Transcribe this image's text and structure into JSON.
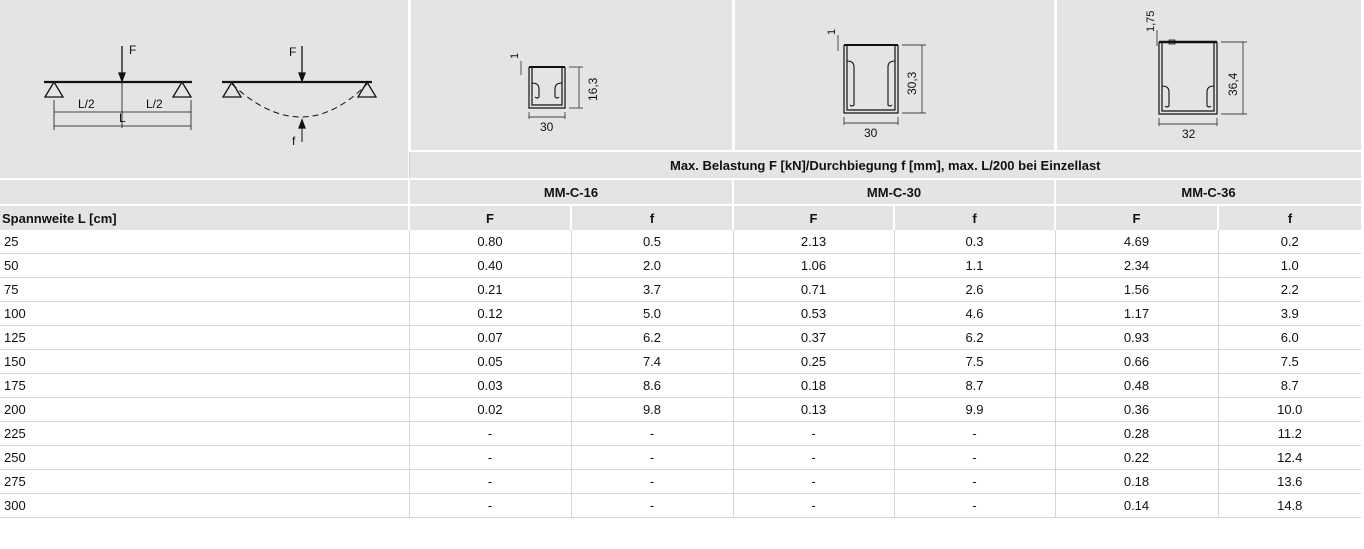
{
  "diagram": {
    "beam_load_label": "F",
    "half_span_left": "L/2",
    "half_span_right": "L/2",
    "span_label": "L",
    "deflection_load_label": "F",
    "deflection_label": "f"
  },
  "profiles": [
    {
      "name": "MM-C-16",
      "width": "30",
      "height": "16,3",
      "thickness": "1"
    },
    {
      "name": "MM-C-30",
      "width": "30",
      "height": "30,3",
      "thickness": "1"
    },
    {
      "name": "MM-C-36",
      "width": "32",
      "height": "36,4",
      "thickness": "1,75"
    }
  ],
  "table": {
    "group_header": "Max. Belastung F [kN]/Durchbiegung f [mm], max. L/200 bei Einzellast",
    "span_header": "Spannweite L [cm]",
    "col_F": "F",
    "col_f": "f",
    "rows": [
      {
        "span": "25",
        "v": [
          "0.80",
          "0.5",
          "2.13",
          "0.3",
          "4.69",
          "0.2"
        ]
      },
      {
        "span": "50",
        "v": [
          "0.40",
          "2.0",
          "1.06",
          "1.1",
          "2.34",
          "1.0"
        ]
      },
      {
        "span": "75",
        "v": [
          "0.21",
          "3.7",
          "0.71",
          "2.6",
          "1.56",
          "2.2"
        ]
      },
      {
        "span": "100",
        "v": [
          "0.12",
          "5.0",
          "0.53",
          "4.6",
          "1.17",
          "3.9"
        ]
      },
      {
        "span": "125",
        "v": [
          "0.07",
          "6.2",
          "0.37",
          "6.2",
          "0.93",
          "6.0"
        ]
      },
      {
        "span": "150",
        "v": [
          "0.05",
          "7.4",
          "0.25",
          "7.5",
          "0.66",
          "7.5"
        ]
      },
      {
        "span": "175",
        "v": [
          "0.03",
          "8.6",
          "0.18",
          "8.7",
          "0.48",
          "8.7"
        ]
      },
      {
        "span": "200",
        "v": [
          "0.02",
          "9.8",
          "0.13",
          "9.9",
          "0.36",
          "10.0"
        ]
      },
      {
        "span": "225",
        "v": [
          "-",
          "-",
          "-",
          "-",
          "0.28",
          "11.2"
        ]
      },
      {
        "span": "250",
        "v": [
          "-",
          "-",
          "-",
          "-",
          "0.22",
          "12.4"
        ]
      },
      {
        "span": "275",
        "v": [
          "-",
          "-",
          "-",
          "-",
          "0.18",
          "13.6"
        ]
      },
      {
        "span": "300",
        "v": [
          "-",
          "-",
          "-",
          "-",
          "0.14",
          "14.8"
        ]
      }
    ]
  }
}
